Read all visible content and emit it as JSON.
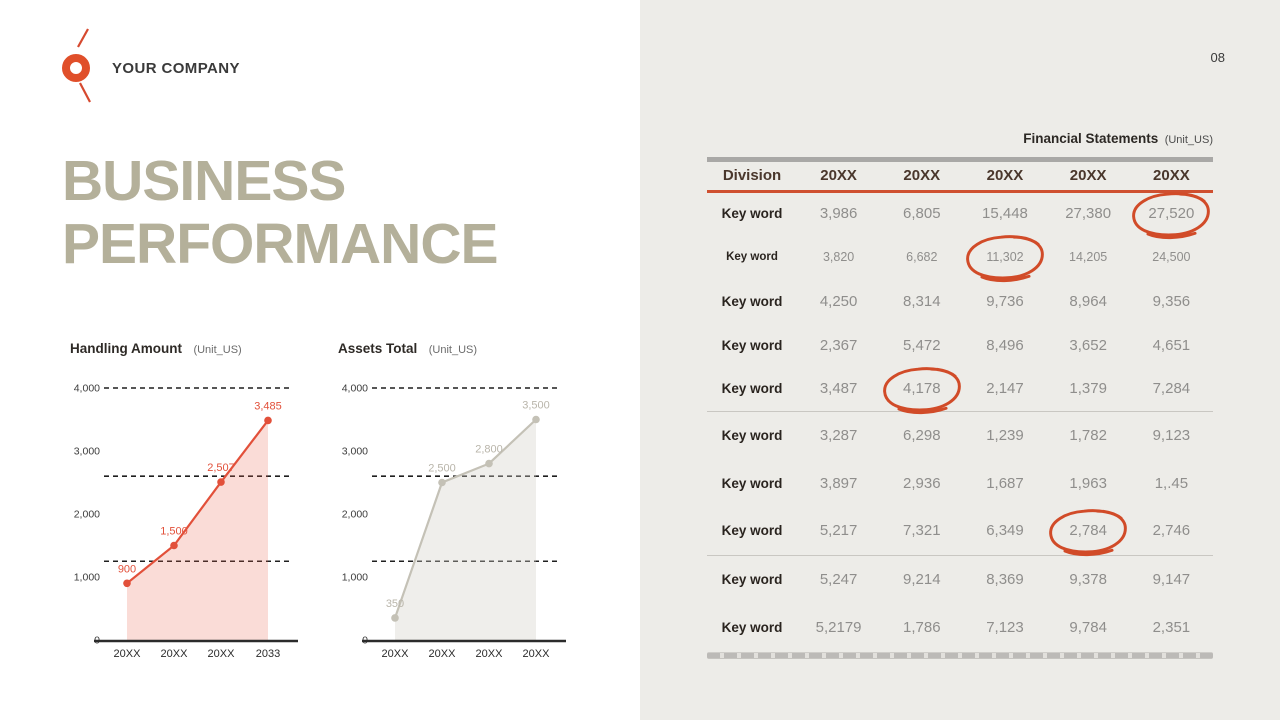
{
  "page": {
    "number": "08"
  },
  "logo": {
    "company_name": "YOUR COMPANY",
    "accent_color": "#e04f2a"
  },
  "title": {
    "line1": "BUSINESS",
    "line2": "PERFORMANCE",
    "color": "#b4b09a"
  },
  "colors": {
    "right_background": "#edece8",
    "table_header_rule": "#cf5030",
    "table_top_bar": "#a9a8a6",
    "annotation_circle": "#d14b28"
  },
  "chart_data": [
    {
      "type": "area",
      "title": "Handling Amount",
      "unit_label": "(Unit_US)",
      "categories": [
        "20XX",
        "20XX",
        "20XX",
        "2033"
      ],
      "values": [
        900,
        1500,
        2507,
        3485
      ],
      "value_labels": [
        "900",
        "1,500",
        "2,507",
        "3,485"
      ],
      "ylim": [
        0,
        4000
      ],
      "yticks": [
        0,
        1000,
        2000,
        3000,
        4000
      ],
      "ytick_labels": [
        "0",
        "1,000",
        "2,000",
        "3,000",
        "4,000"
      ],
      "ref_lines": [
        4000,
        2600,
        1250
      ],
      "grid": "off",
      "line_color": "#e2503a",
      "fill_color": "rgba(232,94,72,0.22)",
      "label_color": "#e2503a"
    },
    {
      "type": "area",
      "title": "Assets Total",
      "unit_label": "(Unit_US)",
      "categories": [
        "20XX",
        "20XX",
        "20XX",
        "20XX"
      ],
      "values": [
        350,
        2500,
        2800,
        3500
      ],
      "value_labels": [
        "350",
        "2,500",
        "2,800",
        "3,500"
      ],
      "ylim": [
        0,
        4000
      ],
      "yticks": [
        0,
        1000,
        2000,
        3000,
        4000
      ],
      "ytick_labels": [
        "0",
        "1,000",
        "2,000",
        "3,000",
        "4,000"
      ],
      "ref_lines": [
        4000,
        2600,
        1250
      ],
      "grid": "off",
      "line_color": "#c4c1b6",
      "fill_color": "rgba(210,207,198,0.35)",
      "label_color": "#b9b5aa"
    }
  ],
  "table": {
    "title": "Financial Statements",
    "unit": "(Unit_US)",
    "columns": [
      "Division",
      "20XX",
      "20XX",
      "20XX",
      "20XX",
      "20XX"
    ],
    "rows": [
      {
        "label": "Key word",
        "small": false,
        "values": [
          "3,986",
          "6,805",
          "15,448",
          "27,380",
          "27,520"
        ]
      },
      {
        "label": "Key word",
        "small": true,
        "values": [
          "3,820",
          "6,682",
          "11,302",
          "14,205",
          "24,500"
        ]
      },
      {
        "label": "Key word",
        "small": false,
        "values": [
          "4,250",
          "8,314",
          "9,736",
          "8,964",
          "9,356"
        ]
      },
      {
        "label": "Key word",
        "small": false,
        "values": [
          "2,367",
          "5,472",
          "8,496",
          "3,652",
          "4,651"
        ]
      },
      {
        "label": "Key word",
        "small": false,
        "values": [
          "3,487",
          "4,178",
          "2,147",
          "1,379",
          "7,284"
        ]
      },
      {
        "label": "Key word",
        "small": false,
        "values": [
          "3,287",
          "6,298",
          "1,239",
          "1,782",
          "9,123"
        ]
      },
      {
        "label": "Key word",
        "small": false,
        "values": [
          "3,897",
          "2,936",
          "1,687",
          "1,963",
          "1,.45"
        ]
      },
      {
        "label": "Key word",
        "small": false,
        "values": [
          "5,217",
          "7,321",
          "6,349",
          "2,784",
          "2,746"
        ]
      },
      {
        "label": "Key word",
        "small": false,
        "values": [
          "5,247",
          "9,214",
          "8,369",
          "9,378",
          "9,147"
        ]
      },
      {
        "label": "Key word",
        "small": false,
        "values": [
          "5,2179",
          "1,786",
          "7,123",
          "9,784",
          "2,351"
        ]
      }
    ],
    "circled_cells": [
      {
        "row": 0,
        "col": 4
      },
      {
        "row": 1,
        "col": 2
      },
      {
        "row": 4,
        "col": 1
      },
      {
        "row": 7,
        "col": 3
      }
    ],
    "separator_after_rows": [
      4,
      7
    ]
  }
}
